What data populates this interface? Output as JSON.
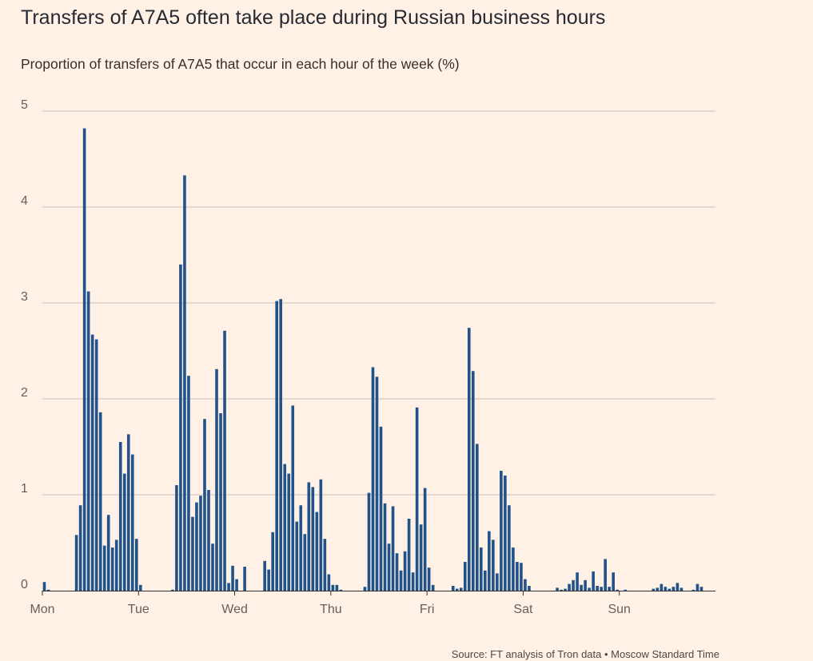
{
  "header": {
    "title": "Transfers of A7A5 often take place during Russian business hours",
    "subtitle": "Proportion of transfers of A7A5 that occur in each hour of the week (%)"
  },
  "footer": {
    "source": "Source: FT analysis of Tron data • Moscow Standard Time"
  },
  "colors": {
    "background": "#fff1e5",
    "bar": "#22528a"
  },
  "chart_data": {
    "type": "bar",
    "title": "Transfers of A7A5 often take place during Russian business hours",
    "subtitle": "Proportion of transfers of A7A5 that occur in each hour of the week (%)",
    "xlabel": "",
    "ylabel": "",
    "ylim": [
      0,
      5
    ],
    "yticks": [
      "0",
      "1",
      "2",
      "3",
      "4",
      "5"
    ],
    "grid": true,
    "legend": "none",
    "day_labels": [
      "Mon",
      "Tue",
      "Wed",
      "Thu",
      "Fri",
      "Sat",
      "Sun"
    ],
    "hours_per_day": 24,
    "values": [
      0.09,
      0.01,
      0,
      0,
      0,
      0,
      0,
      0,
      0.58,
      0.89,
      4.82,
      3.12,
      2.67,
      2.62,
      1.86,
      0.47,
      0.79,
      0.45,
      0.53,
      1.55,
      1.22,
      1.63,
      1.42,
      0.54,
      0.06,
      0,
      0,
      0,
      0,
      0,
      0,
      0,
      0.01,
      1.1,
      3.4,
      4.33,
      2.24,
      0.77,
      0.92,
      0.99,
      1.79,
      1.05,
      0.49,
      2.31,
      1.85,
      2.71,
      0.08,
      0.26,
      0.12,
      0,
      0.25,
      0,
      0,
      0,
      0,
      0.31,
      0.22,
      0.61,
      3.02,
      3.04,
      1.32,
      1.22,
      1.93,
      0.72,
      0.89,
      0.59,
      1.13,
      1.08,
      0.82,
      1.16,
      0.54,
      0.17,
      0.06,
      0.06,
      0.01,
      0,
      0,
      0,
      0,
      0,
      0.04,
      1.02,
      2.33,
      2.23,
      1.71,
      0.91,
      0.49,
      0.88,
      0.39,
      0.21,
      0.41,
      0.75,
      0.19,
      1.91,
      0.69,
      1.07,
      0.24,
      0.06,
      0,
      0,
      0,
      0,
      0.05,
      0.02,
      0.03,
      0.3,
      2.74,
      2.29,
      1.53,
      0.45,
      0.21,
      0.62,
      0.53,
      0.18,
      1.25,
      1.2,
      0.89,
      0.45,
      0.3,
      0.29,
      0.12,
      0.05,
      0,
      0,
      0,
      0,
      0,
      0,
      0.03,
      0.01,
      0.02,
      0.07,
      0.11,
      0.19,
      0.06,
      0.11,
      0.03,
      0.2,
      0.05,
      0.04,
      0.33,
      0.04,
      0.19,
      0.01,
      0,
      0.01,
      0,
      0,
      0,
      0,
      0,
      0,
      0.02,
      0.03,
      0.07,
      0.04,
      0.02,
      0.04,
      0.08,
      0.03,
      0,
      0,
      0.01,
      0.07,
      0.04,
      0,
      0,
      0
    ]
  }
}
